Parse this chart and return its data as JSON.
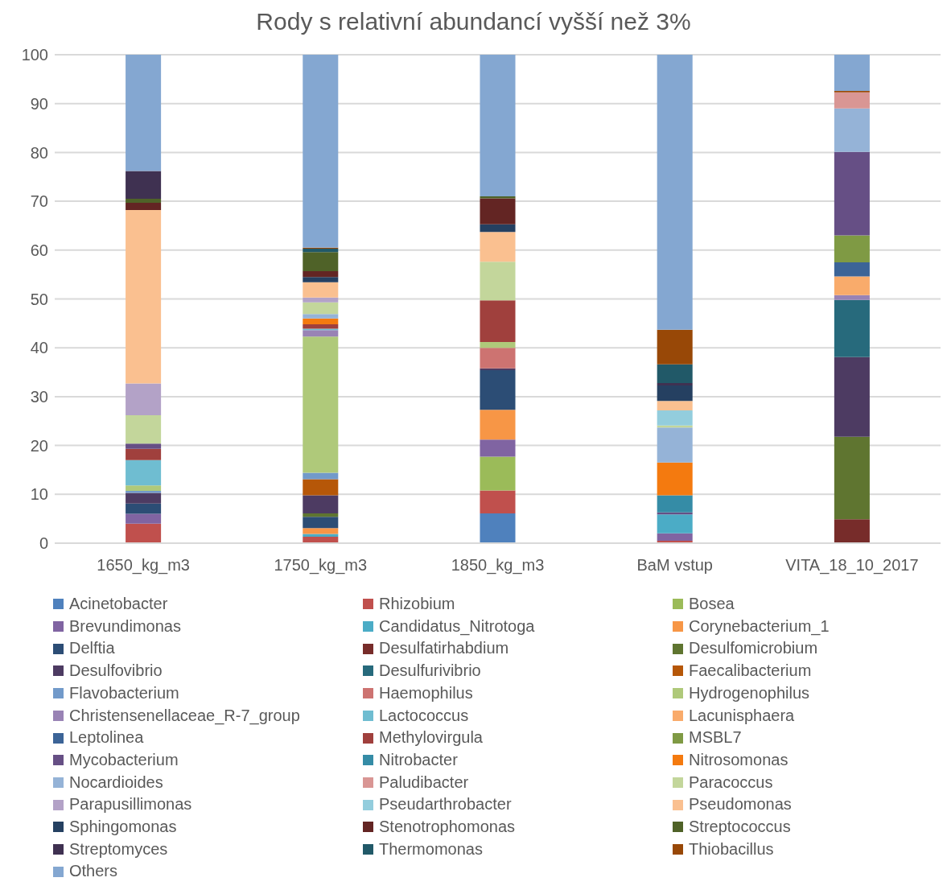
{
  "chart_data": {
    "type": "bar",
    "title": "Rody s relativní abundancí vyšší než 3%",
    "stacked": true,
    "categories": [
      "1650_kg_m3",
      "1750_kg_m3",
      "1850_kg_m3",
      "BaM vstup",
      "VITA_18_10_2017"
    ],
    "ylim": [
      0,
      100
    ],
    "yticks": [
      0,
      10,
      20,
      30,
      40,
      50,
      60,
      70,
      80,
      90,
      100
    ],
    "grid": "y",
    "legend": "bottom",
    "series": [
      {
        "name": "Acinetobacter",
        "color": "#4f81bd",
        "values": [
          null,
          null,
          6.1,
          null,
          null
        ]
      },
      {
        "name": "Rhizobium",
        "color": "#c0504d",
        "values": [
          4.0,
          1.3,
          4.7,
          0.5,
          null
        ]
      },
      {
        "name": "Bosea",
        "color": "#9bbb59",
        "values": [
          null,
          null,
          6.9,
          null,
          null
        ]
      },
      {
        "name": "Brevundimonas",
        "color": "#8064a2",
        "values": [
          2.0,
          null,
          3.5,
          1.5,
          null
        ]
      },
      {
        "name": "Candidatus_Nitrotoga",
        "color": "#4bacc6",
        "values": [
          null,
          0.6,
          null,
          3.9,
          null
        ]
      },
      {
        "name": "Corynebacterium_1",
        "color": "#f79646",
        "values": [
          null,
          1.2,
          6.1,
          null,
          null
        ]
      },
      {
        "name": "Delftia",
        "color": "#2c4d75",
        "values": [
          2.1,
          2.3,
          8.1,
          null,
          null
        ]
      },
      {
        "name": "Desulfatirhabdium",
        "color": "#772c2a",
        "values": [
          null,
          null,
          null,
          null,
          4.9
        ]
      },
      {
        "name": "Desulfomicrobium",
        "color": "#5f7530",
        "values": [
          null,
          0.7,
          null,
          null,
          16.9
        ]
      },
      {
        "name": "Desulfovibrio",
        "color": "#4d3b62",
        "values": [
          2.2,
          3.7,
          0.4,
          null,
          16.3
        ]
      },
      {
        "name": "Desulfurivibrio",
        "color": "#276a7c",
        "values": [
          null,
          null,
          null,
          null,
          11.7
        ]
      },
      {
        "name": "Faecalibacterium",
        "color": "#b65708",
        "values": [
          null,
          3.3,
          null,
          null,
          null
        ]
      },
      {
        "name": "Flavobacterium",
        "color": "#729aca",
        "values": [
          0.4,
          1.3,
          null,
          null,
          null
        ]
      },
      {
        "name": "Haemophilus",
        "color": "#cd7371",
        "values": [
          null,
          null,
          4.2,
          null,
          null
        ]
      },
      {
        "name": "Hydrogenophilus",
        "color": "#afc97a",
        "values": [
          1.1,
          27.9,
          1.2,
          null,
          null
        ]
      },
      {
        "name": "Christensenellaceae_R-7_group",
        "color": "#9983b5",
        "values": [
          null,
          1.3,
          null,
          null,
          1.0
        ]
      },
      {
        "name": "Lactococcus",
        "color": "#6fbdd1",
        "values": [
          5.2,
          0.3,
          null,
          null,
          null
        ]
      },
      {
        "name": "Lacunisphaera",
        "color": "#f9ab6b",
        "values": [
          null,
          null,
          null,
          null,
          3.8
        ]
      },
      {
        "name": "Leptolinea",
        "color": "#3c6497",
        "values": [
          null,
          null,
          null,
          null,
          2.9
        ]
      },
      {
        "name": "Methylovirgula",
        "color": "#a0403d",
        "values": [
          2.3,
          0.9,
          8.5,
          null,
          null
        ]
      },
      {
        "name": "MSBL7",
        "color": "#7f9a44",
        "values": [
          null,
          null,
          null,
          null,
          5.5
        ]
      },
      {
        "name": "Mycobacterium",
        "color": "#664f85",
        "values": [
          1.1,
          null,
          null,
          0.4,
          17.1
        ]
      },
      {
        "name": "Nitrobacter",
        "color": "#358ca6",
        "values": [
          null,
          null,
          null,
          3.5,
          null
        ]
      },
      {
        "name": "Nitrosomonas",
        "color": "#f47a0f",
        "values": [
          null,
          1.2,
          null,
          6.7,
          null
        ]
      },
      {
        "name": "Nocardioides",
        "color": "#95b3d7",
        "values": [
          null,
          0.9,
          null,
          7.2,
          8.9
        ]
      },
      {
        "name": "Paludibacter",
        "color": "#d99694",
        "values": [
          null,
          null,
          null,
          null,
          3.3
        ]
      },
      {
        "name": "Paracoccus",
        "color": "#c3d69b",
        "values": [
          5.8,
          2.4,
          7.9,
          0.4,
          null
        ]
      },
      {
        "name": "Parapusillimonas",
        "color": "#b3a2c7",
        "values": [
          6.5,
          1.0,
          null,
          null,
          null
        ]
      },
      {
        "name": "Pseudarthrobacter",
        "color": "#93cddd",
        "values": [
          null,
          null,
          null,
          3.1,
          null
        ]
      },
      {
        "name": "Pseudomonas",
        "color": "#fac090",
        "values": [
          35.5,
          3.1,
          6.1,
          1.9,
          null
        ]
      },
      {
        "name": "Sphingomonas",
        "color": "#254061",
        "values": [
          null,
          1.1,
          1.6,
          3.2,
          null
        ]
      },
      {
        "name": "Stenotrophomonas",
        "color": "#632523",
        "values": [
          1.5,
          1.2,
          5.3,
          null,
          null
        ]
      },
      {
        "name": "Streptococcus",
        "color": "#4f6228",
        "values": [
          0.8,
          3.9,
          0.4,
          null,
          null
        ]
      },
      {
        "name": "Streptomyces",
        "color": "#3f3151",
        "values": [
          5.7,
          null,
          null,
          0.5,
          null
        ]
      },
      {
        "name": "Thermomonas",
        "color": "#215968",
        "values": [
          null,
          0.7,
          null,
          3.8,
          null
        ]
      },
      {
        "name": "Thiobacillus",
        "color": "#984807",
        "values": [
          null,
          0.2,
          null,
          7.1,
          0.3
        ]
      },
      {
        "name": "Others",
        "color": "#84a7d1",
        "values": [
          23.8,
          39.5,
          29.0,
          56.3,
          7.4
        ]
      }
    ]
  }
}
